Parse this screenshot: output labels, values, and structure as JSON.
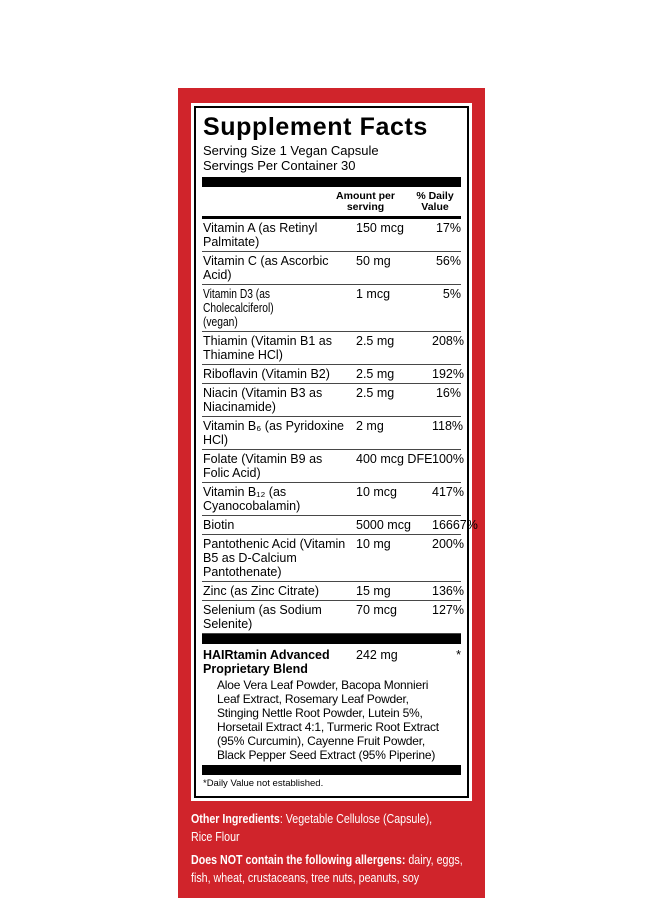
{
  "colors": {
    "label_red": "#d0242b",
    "text_black": "#000000",
    "text_white": "#ffffff"
  },
  "label": {
    "title": "Supplement Facts",
    "serving_size": "Serving Size 1 Vegan Capsule",
    "servings_per_container": "Servings Per Container 30",
    "header": {
      "amount": "Amount per serving",
      "daily_value": "% Daily Value"
    },
    "rows": [
      {
        "name": "Vitamin A (as Retinyl\nPalmitate)",
        "amount": "150 mcg",
        "dv": "17%"
      },
      {
        "name": "Vitamin C (as Ascorbic\nAcid)",
        "amount": "50 mg",
        "dv": "56%"
      },
      {
        "name": "Vitamin D3 (as Cholecalciferol)\n(vegan)",
        "amount": "1 mcg",
        "dv": "5%"
      },
      {
        "name": "Thiamin (Vitamin B1 as\nThiamine HCl)",
        "amount": "2.5 mg",
        "dv": "208%"
      },
      {
        "name": "Riboflavin (Vitamin B2)",
        "amount": "2.5 mg",
        "dv": "192%"
      },
      {
        "name": "Niacin (Vitamin B3 as\nNiacinamide)",
        "amount": "2.5 mg",
        "dv": "16%"
      },
      {
        "name": "Vitamin B₆ (as Pyridoxine\nHCl)",
        "amount": "2 mg",
        "dv": "118%"
      },
      {
        "name": "Folate (Vitamin B9 as\nFolic Acid)",
        "amount": "400 mcg DFE",
        "dv": "100%"
      },
      {
        "name": "Vitamin B₁₂ (as\nCyanocobalamin)",
        "amount": "10 mcg",
        "dv": "417%"
      },
      {
        "name": "Biotin",
        "amount": "5000 mcg",
        "dv": "16667%"
      },
      {
        "name": "Pantothenic Acid (Vitamin\nB5 as D-Calcium\nPantothenate)",
        "amount": "10 mg",
        "dv": "200%"
      },
      {
        "name": "Zinc (as Zinc Citrate)",
        "amount": "15 mg",
        "dv": "136%"
      },
      {
        "name": "Selenium (as Sodium\nSelenite)",
        "amount": "70 mcg",
        "dv": "127%"
      }
    ],
    "blend": {
      "name": "HAIRtamin Advanced\nProprietary Blend",
      "amount": "242 mg",
      "dv": "*",
      "ingredients": "Aloe Vera Leaf Powder, Bacopa Monnieri\nLeaf Extract, Rosemary Leaf Powder,\nStinging Nettle Root Powder, Lutein 5%,\nHorsetail Extract 4:1, Turmeric Root Extract\n(95% Curcumin), Cayenne Fruit Powder,\nBlack Pepper Seed Extract (95% Piperine)",
      "ingredients_list": [
        "Aloe Vera Leaf Powder",
        "Bacopa Monnieri Leaf Extract",
        "Rosemary Leaf Powder",
        "Stinging Nettle Root Powder",
        "Lutein 5%",
        "Horsetail Extract 4:1",
        "Turmeric Root Extract (95% Curcumin)",
        "Cayenne Fruit Powder",
        "Black Pepper Seed Extract (95% Piperine)"
      ]
    },
    "footnote": "*Daily Value not established.",
    "notes": {
      "other_ingredients_label": "Other Ingredients",
      "other_ingredients_text": ": Vegetable Cellulose (Capsule),\nRice Flour",
      "allergens_label": "Does NOT contain the following allergens:",
      "allergens_text": " dairy, eggs,\nfish, wheat, crustaceans, tree nuts, peanuts, soy"
    }
  }
}
